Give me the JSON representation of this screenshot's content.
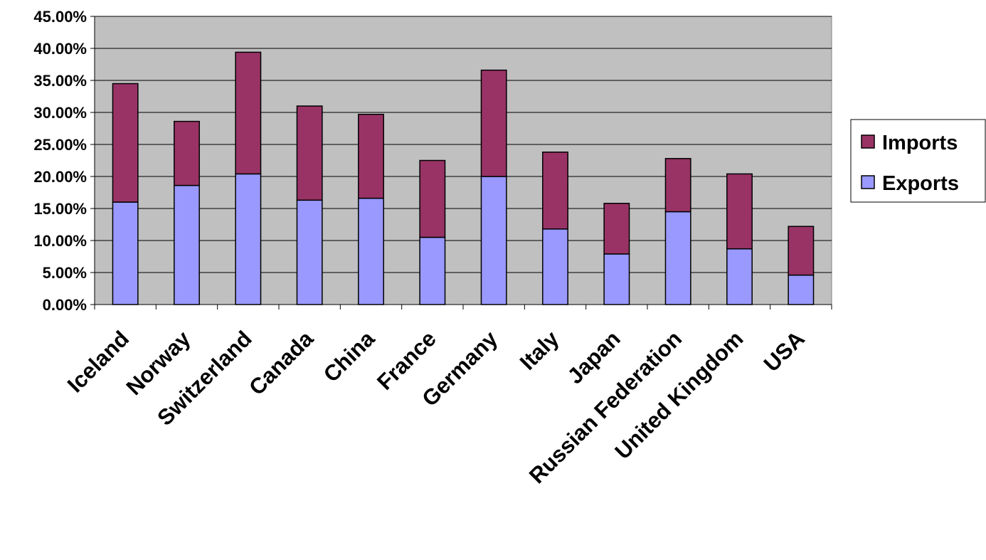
{
  "chart_data": {
    "type": "bar",
    "stacked": true,
    "categories": [
      "Iceland",
      "Norway",
      "Switzerland",
      "Canada",
      "China",
      "France",
      "Germany",
      "Italy",
      "Japan",
      "Russian Federation",
      "United Kingdom",
      "USA"
    ],
    "series": [
      {
        "name": "Exports",
        "color": "#9999ff",
        "values": [
          16.0,
          18.6,
          20.4,
          16.3,
          16.6,
          10.5,
          20.0,
          11.8,
          7.9,
          14.5,
          8.7,
          4.6
        ]
      },
      {
        "name": "Imports",
        "color": "#993366",
        "values": [
          18.5,
          10.0,
          19.0,
          14.7,
          13.1,
          12.0,
          16.6,
          12.0,
          7.9,
          8.3,
          11.7,
          7.6
        ]
      }
    ],
    "ylim": [
      0,
      45
    ],
    "yticks": [
      "0.00%",
      "5.00%",
      "10.00%",
      "15.00%",
      "20.00%",
      "25.00%",
      "30.00%",
      "35.00%",
      "40.00%",
      "45.00%"
    ],
    "y_tick_step": 5,
    "plot_background": "#c0c0c0",
    "grid": true,
    "legend": {
      "position": "right",
      "entries": [
        "Imports",
        "Exports"
      ]
    },
    "title": "",
    "xlabel": "",
    "ylabel": ""
  }
}
